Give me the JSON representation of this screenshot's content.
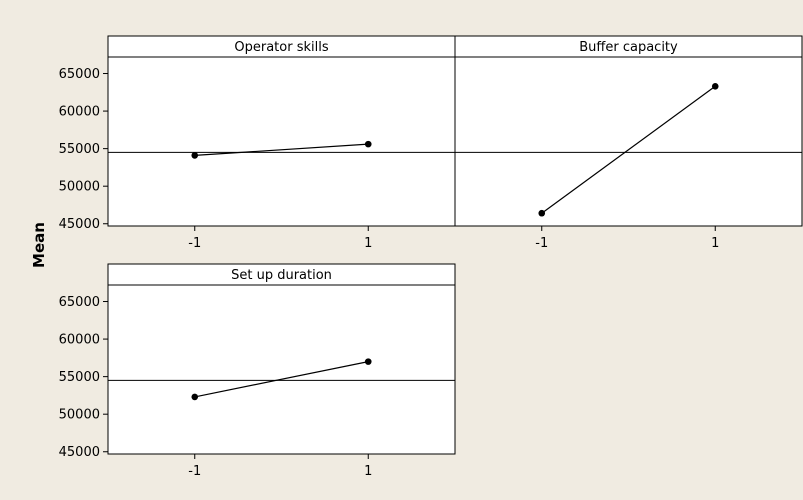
{
  "chart_data": {
    "type": "line",
    "title": "",
    "ylabel": "Mean",
    "ylim": [
      44700,
      67200
    ],
    "y_ticks": [
      45000,
      50000,
      55000,
      60000,
      65000
    ],
    "x_ticks": [
      "-1",
      "1"
    ],
    "reference_mean": 54500,
    "grid": false,
    "legend": "none",
    "panels": [
      {
        "title": "Operator skills",
        "x": [
          "-1",
          "1"
        ],
        "values": [
          54100,
          55600
        ]
      },
      {
        "title": "Buffer capacity",
        "x": [
          "-1",
          "1"
        ],
        "values": [
          46400,
          63300
        ]
      },
      {
        "title": "Set up duration",
        "x": [
          "-1",
          "1"
        ],
        "values": [
          52300,
          57000
        ]
      }
    ]
  }
}
